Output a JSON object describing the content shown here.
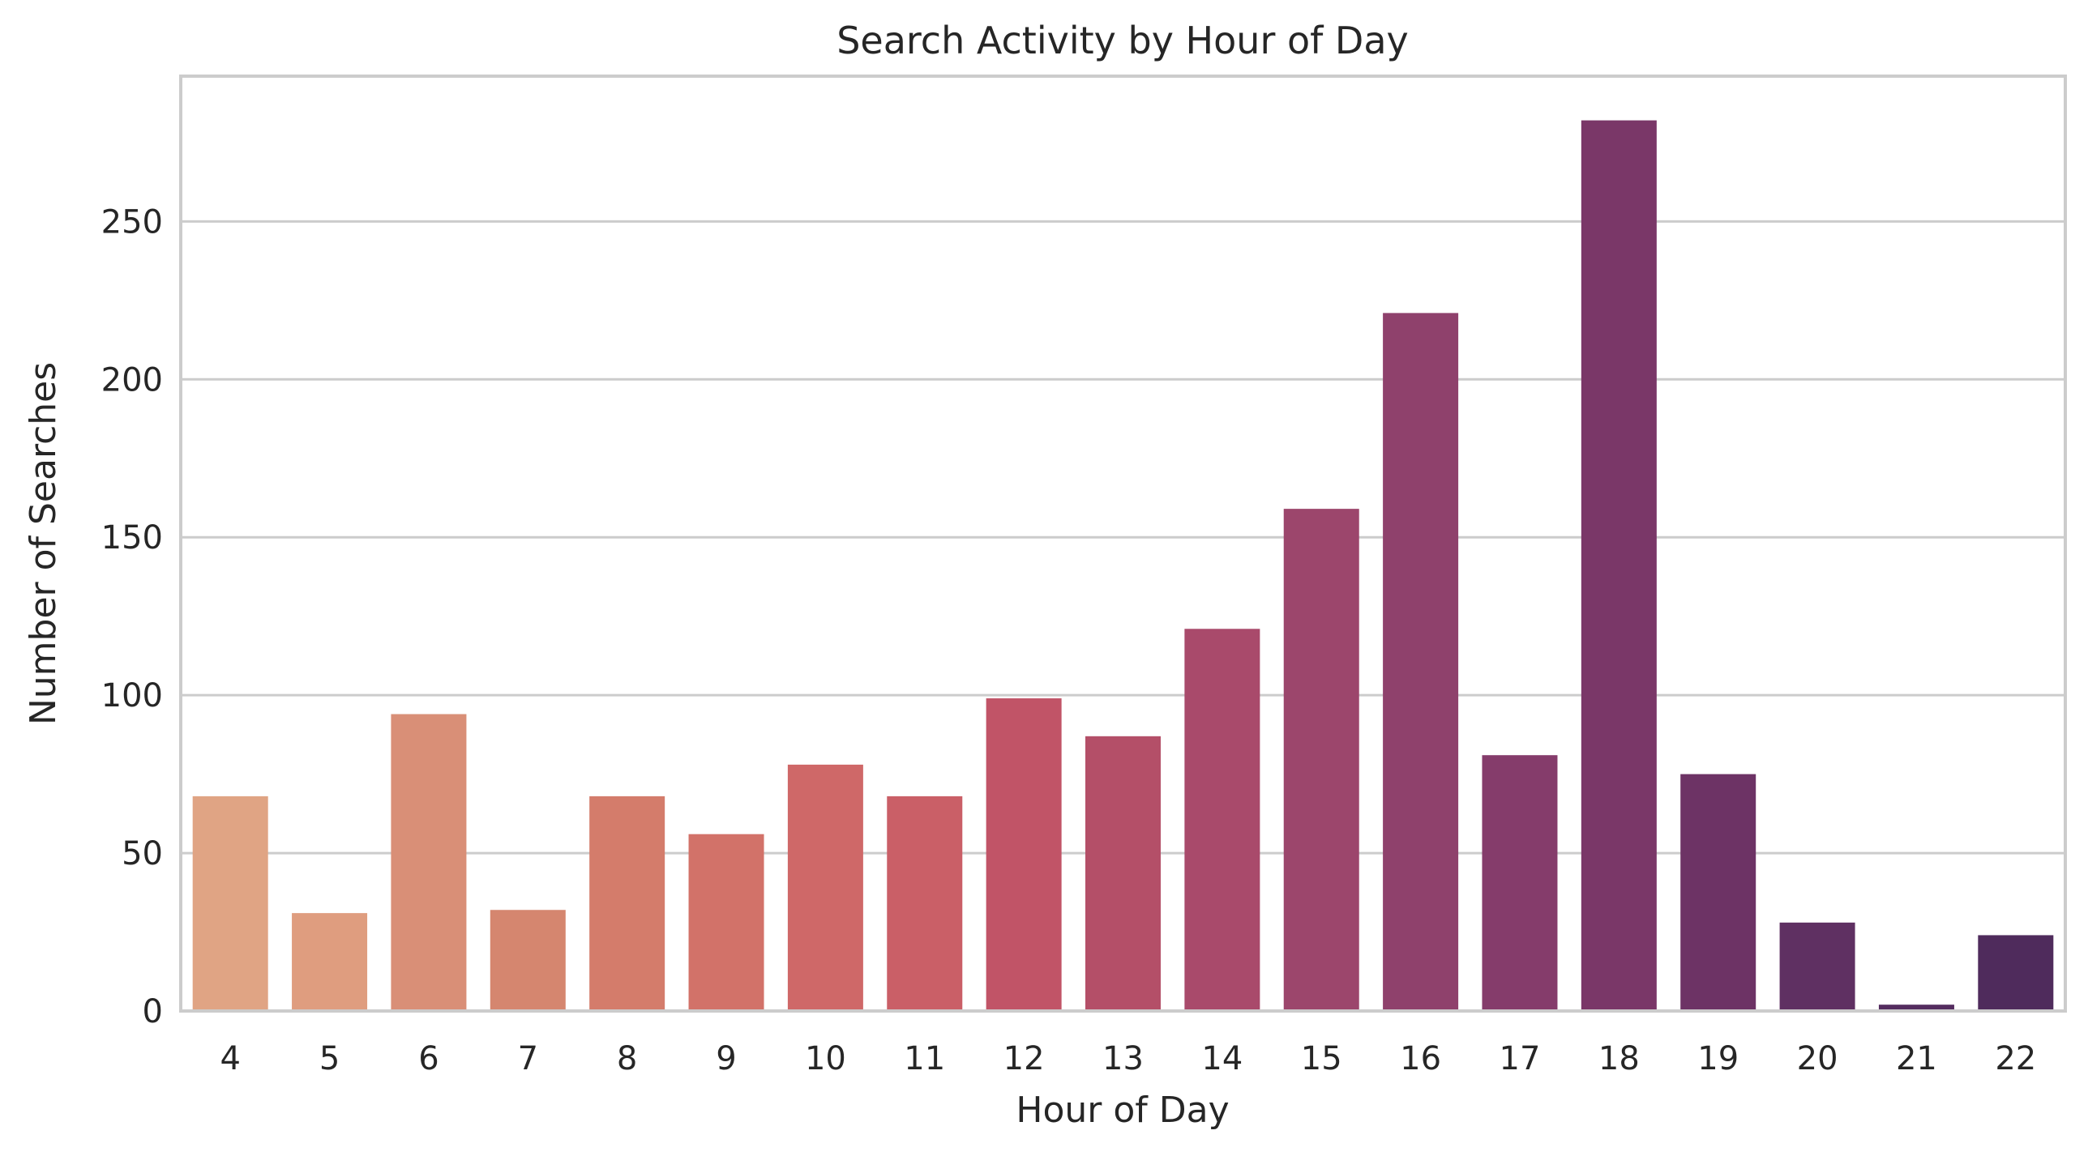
{
  "chart_data": {
    "type": "bar",
    "title": "Search Activity by Hour of Day",
    "xlabel": "Hour of Day",
    "ylabel": "Number of Searches",
    "categories": [
      "4",
      "5",
      "6",
      "7",
      "8",
      "9",
      "10",
      "11",
      "12",
      "13",
      "14",
      "15",
      "16",
      "17",
      "18",
      "19",
      "20",
      "21",
      "22"
    ],
    "values": [
      68,
      31,
      94,
      32,
      68,
      56,
      78,
      68,
      99,
      87,
      121,
      159,
      221,
      81,
      282,
      75,
      28,
      2,
      24
    ],
    "colors": [
      "#e0a484",
      "#df9d7f",
      "#d98f77",
      "#d5866f",
      "#d47c6b",
      "#d27269",
      "#cf6868",
      "#ca5f67",
      "#c15467",
      "#b44f68",
      "#a94a6b",
      "#9c466c",
      "#8f416c",
      "#853c6b",
      "#7a3768",
      "#6d3365",
      "#5f3062",
      "#542c5f",
      "#4f2b5c"
    ],
    "ylim": [
      0,
      296
    ],
    "yticks": [
      0,
      50,
      100,
      150,
      200,
      250
    ],
    "grid": "horizontal",
    "legend": "none"
  }
}
